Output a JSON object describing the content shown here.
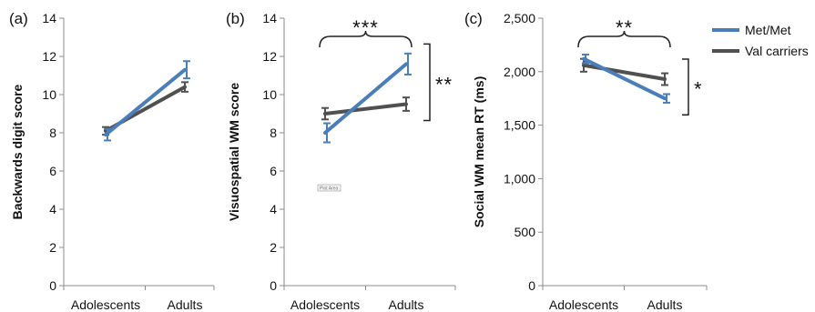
{
  "legend": {
    "items": [
      {
        "label": "Met/Met",
        "color": "#4a7ebb"
      },
      {
        "label": "Val carriers",
        "color": "#505050"
      }
    ],
    "placement": "top-right"
  },
  "plot_area_tag": "Plot Area",
  "chart_data": [
    {
      "type": "line",
      "panel_label": "(a)",
      "ylabel": "Backwards digit score",
      "xlabel": "",
      "categories": [
        "Adolescents",
        "Adults"
      ],
      "ylim": [
        0,
        14
      ],
      "yticks": [
        0,
        2,
        4,
        6,
        8,
        10,
        12,
        14
      ],
      "ytick_labels": [
        "0",
        "2",
        "4",
        "6",
        "8",
        "10",
        "12",
        "14"
      ],
      "grid": false,
      "series": [
        {
          "name": "Met/Met",
          "color": "#4a7ebb",
          "values": [
            7.9,
            11.3
          ],
          "error": [
            0.3,
            0.45
          ]
        },
        {
          "name": "Val carriers",
          "color": "#505050",
          "values": [
            8.1,
            10.4
          ],
          "error": [
            0.2,
            0.25
          ]
        }
      ],
      "annotations": []
    },
    {
      "type": "line",
      "panel_label": "(b)",
      "ylabel": "Visuospatial WM score",
      "xlabel": "",
      "categories": [
        "Adolescents",
        "Adults"
      ],
      "ylim": [
        0,
        14
      ],
      "yticks": [
        0,
        2,
        4,
        6,
        8,
        10,
        12,
        14
      ],
      "ytick_labels": [
        "0",
        "2",
        "4",
        "6",
        "8",
        "10",
        "12",
        "14"
      ],
      "grid": false,
      "series": [
        {
          "name": "Met/Met",
          "color": "#4a7ebb",
          "values": [
            8.0,
            11.6
          ],
          "error": [
            0.5,
            0.55
          ]
        },
        {
          "name": "Val carriers",
          "color": "#505050",
          "values": [
            9.0,
            9.5
          ],
          "error": [
            0.3,
            0.35
          ]
        }
      ],
      "annotations": [
        {
          "kind": "brace-top",
          "text": "***"
        },
        {
          "kind": "bracket-right",
          "text": "**",
          "from": 11.6,
          "to": 9.5
        }
      ]
    },
    {
      "type": "line",
      "panel_label": "(c)",
      "ylabel": "Social WM mean RT (ms)",
      "xlabel": "",
      "categories": [
        "Adolescents",
        "Adults"
      ],
      "ylim": [
        0,
        2500
      ],
      "yticks": [
        0,
        500,
        1000,
        1500,
        2000,
        2500
      ],
      "ytick_labels": [
        "0",
        "500",
        "1,000",
        "1,500",
        "2,000",
        "2,500"
      ],
      "grid": false,
      "series": [
        {
          "name": "Met/Met",
          "color": "#4a7ebb",
          "values": [
            2120,
            1750
          ],
          "error": [
            40,
            40
          ]
        },
        {
          "name": "Val carriers",
          "color": "#505050",
          "values": [
            2060,
            1930
          ],
          "error": [
            60,
            55
          ]
        }
      ],
      "annotations": [
        {
          "kind": "brace-top",
          "text": "**"
        },
        {
          "kind": "bracket-right",
          "text": "*",
          "from": 1930,
          "to": 1750
        }
      ]
    }
  ]
}
